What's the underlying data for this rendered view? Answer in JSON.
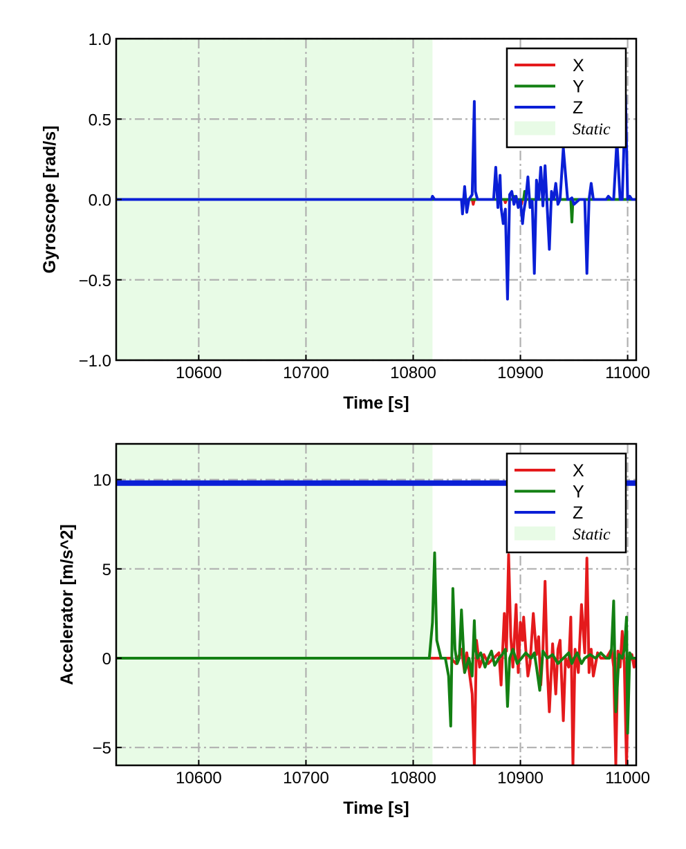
{
  "chart_data": [
    {
      "type": "line",
      "xlabel": "Time [s]",
      "ylabel": "Gyroscope [rad/s]",
      "xlim": [
        10523,
        11008
      ],
      "ylim": [
        -1.0,
        1.0
      ],
      "xticks": [
        10600,
        10700,
        10800,
        10900,
        11000
      ],
      "xtick_labels": [
        "10600",
        "10700",
        "10800",
        "10900",
        "11000"
      ],
      "yticks": [
        -1.0,
        -0.5,
        0.0,
        0.5,
        1.0
      ],
      "ytick_labels": [
        "−1.0",
        "−0.5",
        "0.0",
        "0.5",
        "1.0"
      ],
      "grid": true,
      "legend_position": "top-right",
      "static_region": {
        "label": "Static",
        "start": 10523,
        "end": 10818,
        "color": "#e8fbe6"
      },
      "series": [
        {
          "name": "X",
          "color": "#e41a1c",
          "x": [
            10523,
            10855,
            10856,
            10857,
            10858,
            10885,
            10886,
            10887,
            10900,
            10901,
            10902,
            10903,
            10950,
            11008
          ],
          "y": [
            0.0,
            0.0,
            -0.03,
            0.0,
            0.0,
            0.0,
            -0.02,
            0.0,
            0.0,
            -0.03,
            0.0,
            0.0,
            0.0,
            0.0
          ]
        },
        {
          "name": "Y",
          "color": "#138013",
          "x": [
            10523,
            10893,
            10894,
            10895,
            10903,
            10904,
            10905,
            10947,
            10948,
            10949,
            10950,
            11008
          ],
          "y": [
            0.0,
            0.0,
            0.02,
            0.0,
            0.0,
            0.05,
            0.0,
            0.0,
            -0.14,
            0.0,
            0.0,
            0.0
          ]
        },
        {
          "name": "Z",
          "color": "#0a1fd6",
          "x": [
            10523,
            10817,
            10818,
            10820,
            10845,
            10846,
            10848,
            10850,
            10852,
            10855,
            10857,
            10858,
            10860,
            10864,
            10870,
            10875,
            10877,
            10879,
            10881,
            10882,
            10884,
            10886,
            10888,
            10890,
            10892,
            10894,
            10896,
            10898,
            10900,
            10902,
            10903,
            10905,
            10907,
            10909,
            10911,
            10913,
            10915,
            10917,
            10919,
            10921,
            10923,
            10925,
            10927,
            10929,
            10931,
            10933,
            10935,
            10937,
            10940,
            10944,
            10946,
            10948,
            10950,
            10955,
            10960,
            10962,
            10964,
            10966,
            10968,
            10975,
            10980,
            10982,
            10985,
            10987,
            10990,
            10993,
            10995,
            10998,
            11000,
            11002,
            11004,
            11006,
            11008
          ],
          "y": [
            0.0,
            0.0,
            0.02,
            0.0,
            0.0,
            -0.09,
            0.08,
            -0.08,
            0.0,
            0.03,
            0.61,
            0.05,
            0.0,
            0.0,
            0.0,
            0.0,
            0.2,
            -0.05,
            0.15,
            -0.05,
            -0.15,
            -0.06,
            -0.62,
            0.03,
            0.05,
            -0.03,
            0.02,
            -0.05,
            0.0,
            -0.15,
            -0.08,
            0.0,
            0.14,
            -0.05,
            -0.01,
            -0.46,
            0.12,
            0.0,
            0.2,
            -0.04,
            0.21,
            -0.05,
            -0.31,
            0.05,
            0.0,
            0.1,
            -0.03,
            0.0,
            0.32,
            0.0,
            0.0,
            0.01,
            -0.03,
            0.0,
            0.0,
            -0.46,
            0.0,
            0.1,
            0.0,
            0.0,
            0.0,
            0.02,
            0.0,
            0.0,
            0.37,
            0.0,
            0.0,
            0.65,
            0.0,
            0.02,
            0.0,
            0.0,
            0.0
          ]
        }
      ]
    },
    {
      "type": "line",
      "xlabel": "Time [s]",
      "ylabel": "Accelerator [m/s^2]",
      "xlim": [
        10523,
        11008
      ],
      "ylim": [
        -6.0,
        12.0
      ],
      "xticks": [
        10600,
        10700,
        10800,
        10900,
        11000
      ],
      "xtick_labels": [
        "10600",
        "10700",
        "10800",
        "10900",
        "11000"
      ],
      "yticks": [
        -5,
        0,
        5,
        10
      ],
      "ytick_labels": [
        "−5",
        "0",
        "5",
        "10"
      ],
      "grid": true,
      "legend_position": "top-right",
      "static_region": {
        "label": "Static",
        "start": 10523,
        "end": 10818,
        "color": "#e8fbe6"
      },
      "series": [
        {
          "name": "X",
          "color": "#e41a1c",
          "x": [
            10523,
            10820,
            10835,
            10840,
            10845,
            10848,
            10850,
            10855,
            10857,
            10859,
            10862,
            10866,
            10870,
            10875,
            10880,
            10882,
            10885,
            10887,
            10889,
            10891,
            10893,
            10896,
            10898,
            10900,
            10902,
            10903,
            10905,
            10907,
            10909,
            10912,
            10915,
            10917,
            10919,
            10921,
            10923,
            10925,
            10927,
            10930,
            10933,
            10935,
            10937,
            10940,
            10942,
            10945,
            10947,
            10949,
            10951,
            10954,
            10957,
            10960,
            10962,
            10964,
            10966,
            10968,
            10972,
            10975,
            10980,
            10985,
            10987,
            10989,
            10991,
            10993,
            10995,
            10997,
            10999,
            11001,
            11004,
            11006,
            11008
          ],
          "y": [
            0.0,
            0.0,
            0.0,
            -0.3,
            0.5,
            -0.8,
            0.3,
            -2.0,
            -6.0,
            1.0,
            -0.5,
            0.2,
            -0.3,
            0.0,
            0.3,
            -1.5,
            2.5,
            0.4,
            5.8,
            1.2,
            -0.5,
            3.0,
            -0.8,
            2.0,
            1.0,
            2.3,
            0.5,
            -1.0,
            -0.3,
            2.5,
            0.2,
            1.2,
            -1.5,
            0.5,
            4.3,
            -0.5,
            -3.0,
            0.8,
            -2.0,
            0.5,
            1.0,
            -3.5,
            0.0,
            -0.5,
            2.3,
            -6.0,
            0.5,
            -0.8,
            3.0,
            0.3,
            5.6,
            -0.8,
            0.5,
            -1.0,
            0.3,
            0.0,
            0.0,
            0.5,
            -0.5,
            -6.0,
            0.4,
            -0.5,
            1.5,
            -0.5,
            -6.0,
            -0.3,
            0.2,
            -0.5,
            0.0
          ]
        },
        {
          "name": "Y",
          "color": "#138013",
          "x": [
            10523,
            10815,
            10818,
            10820,
            10822,
            10824,
            10826,
            10830,
            10833,
            10835,
            10837,
            10839,
            10841,
            10843,
            10845,
            10848,
            10852,
            10855,
            10857,
            10858,
            10860,
            10863,
            10867,
            10870,
            10873,
            10876,
            10880,
            10883,
            10886,
            10888,
            10890,
            10893,
            10897,
            10901,
            10905,
            10910,
            10913,
            10915,
            10918,
            10921,
            10925,
            10930,
            10935,
            10940,
            10945,
            10948,
            10950,
            10953,
            10957,
            10960,
            10965,
            10970,
            10975,
            10980,
            10983,
            10985,
            10987,
            10989,
            10992,
            10995,
            10997,
            10999,
            11000,
            11002,
            11004,
            11008
          ],
          "y": [
            0.0,
            0.0,
            2.0,
            5.9,
            1.0,
            0.5,
            0.0,
            0.0,
            -1.0,
            -3.8,
            3.9,
            0.5,
            -0.3,
            0.0,
            2.7,
            -0.8,
            0.0,
            -1.0,
            2.1,
            0.5,
            0.0,
            0.3,
            -0.5,
            0.0,
            0.4,
            -0.4,
            0.0,
            0.2,
            0.5,
            -2.7,
            0.0,
            0.5,
            -0.3,
            0.0,
            0.3,
            0.0,
            0.3,
            -0.5,
            -1.8,
            0.4,
            0.0,
            0.2,
            -0.3,
            0.0,
            0.3,
            -0.3,
            0.0,
            0.3,
            -0.3,
            0.0,
            0.2,
            0.0,
            0.3,
            0.0,
            0.0,
            0.5,
            3.2,
            -3.0,
            0.2,
            0.0,
            0.5,
            2.3,
            -4.2,
            0.3,
            0.0,
            0.0
          ]
        },
        {
          "name": "Z",
          "color": "#0a1fd6",
          "x": [
            10523,
            11008
          ],
          "y": [
            9.8,
            9.8
          ]
        }
      ]
    }
  ]
}
